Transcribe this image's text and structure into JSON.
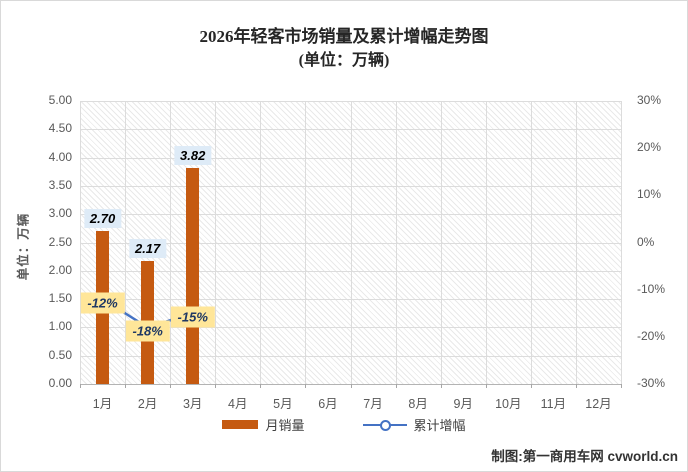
{
  "chart": {
    "title": "2026年轻客市场销量及累计增幅走势图",
    "subtitle": "(单位：万辆)",
    "y_axis_title": "单位：万辆",
    "credit": "制图:第一商用车网 cvworld.cn"
  },
  "chart_data": {
    "type": "bar",
    "title": "2026年轻客市场销量及累计增幅走势图",
    "subtitle": "(单位：万辆)",
    "categories": [
      "1月",
      "2月",
      "3月",
      "4月",
      "5月",
      "6月",
      "7月",
      "8月",
      "9月",
      "10月",
      "11月",
      "12月"
    ],
    "series": [
      {
        "name": "月销量",
        "type": "bar",
        "axis": "left",
        "values": [
          2.7,
          2.17,
          3.82,
          null,
          null,
          null,
          null,
          null,
          null,
          null,
          null,
          null
        ],
        "labels": [
          "2.70",
          "2.17",
          "3.82"
        ],
        "color": "#C55A11",
        "label_bg": "#DEEBF7",
        "label_color": "#000000"
      },
      {
        "name": "累计增幅",
        "type": "line",
        "axis": "right",
        "values": [
          -12,
          -18,
          -15,
          null,
          null,
          null,
          null,
          null,
          null,
          null,
          null,
          null
        ],
        "labels": [
          "-12%",
          "-18%",
          "-15%"
        ],
        "color": "#4472C4",
        "label_bg": "#FFE699",
        "label_color": "#1F3864"
      }
    ],
    "left_axis": {
      "title": "单位：万辆",
      "min": 0,
      "max": 5,
      "step": 0.5,
      "ticks": [
        "5.00",
        "4.50",
        "4.00",
        "3.50",
        "3.00",
        "2.50",
        "2.00",
        "1.50",
        "1.00",
        "0.50",
        "0.00"
      ]
    },
    "right_axis": {
      "min": -30,
      "max": 30,
      "step": 10,
      "ticks": [
        "30%",
        "20%",
        "10%",
        "0%",
        "-10%",
        "-20%",
        "-30%"
      ],
      "unit": "%"
    },
    "legend": [
      "月销量",
      "累计增幅"
    ],
    "legend_position": "bottom",
    "grid": true,
    "plot_background": "diagonal-hatch",
    "grid_color": "#D9D9D9",
    "axis_text_color": "#595959",
    "credit": "制图:第一商用车网 cvworld.cn"
  }
}
